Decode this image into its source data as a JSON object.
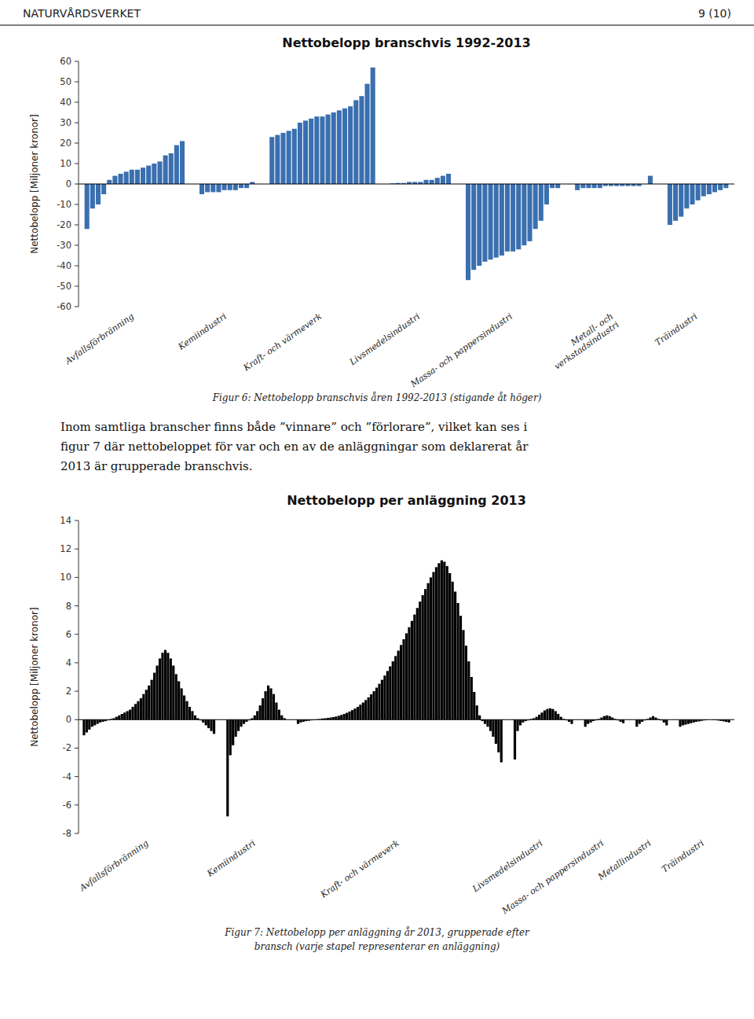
{
  "header_left": "NATURVÅRDSVERKET",
  "header_right": "9 (10)",
  "body_text": [
    "Inom samtliga branscher finns både ”vinnare” och ”förlorare”, vilket kan ses i",
    "figur 7 där nettobeloppet för var och en av de anläggningar som deklarerat år",
    "2013 är grupperade branschvis."
  ],
  "chart_data": [
    {
      "type": "bar",
      "title": "Nettobelopp branschvis 1992-2013",
      "y_label": "Nettobelopp [Miljoner kronor]",
      "caption": [
        "Figur 6: Nettobelopp branschvis åren 1992-2013 (stigande åt höger)"
      ],
      "color": "#3A6FB0",
      "ylim": [
        -60,
        60
      ],
      "yticks": [
        -60,
        -50,
        -40,
        -30,
        -20,
        -10,
        0,
        10,
        20,
        30,
        40,
        50,
        60
      ],
      "grid": false,
      "series": [
        {
          "name": "Avfallsförbränning",
          "values": [
            -22,
            -12,
            -10,
            -5,
            2,
            4,
            5,
            6,
            7,
            7,
            8,
            9,
            10,
            11,
            14,
            15,
            19,
            21
          ]
        },
        {
          "name": "Kemiindustri",
          "values": [
            -5,
            -4,
            -4,
            -4,
            -3,
            -3,
            -3,
            -2,
            -2,
            1
          ]
        },
        {
          "name": "Kraft- och värmeverk",
          "values": [
            23,
            24,
            25,
            26,
            27,
            30,
            31,
            32,
            33,
            33,
            34,
            35,
            36,
            37,
            38,
            41,
            43,
            49,
            57
          ]
        },
        {
          "name": "Livsmedelsindustri",
          "values": [
            0.3,
            0.5,
            0.5,
            1,
            1,
            1,
            2,
            2,
            3,
            4,
            5
          ]
        },
        {
          "name": "Massa- och pappersindustri",
          "values": [
            -47,
            -42,
            -40,
            -38,
            -37,
            -36,
            -35,
            -33,
            -33,
            -32,
            -30,
            -28,
            -22,
            -18,
            -10,
            -2,
            -2
          ]
        },
        {
          "name": "Metall- och\nverkstadsindustri",
          "values": [
            -3,
            -2,
            -2,
            -2,
            -2,
            -1,
            -1,
            -1,
            -1,
            -1,
            -1,
            -1,
            0,
            4
          ]
        },
        {
          "name": "Träindustri",
          "values": [
            -20,
            -18,
            -16,
            -12,
            -10,
            -8,
            -6,
            -5,
            -4,
            -3,
            -2
          ]
        }
      ]
    },
    {
      "type": "bar",
      "title": "Nettobelopp per anläggning 2013",
      "y_label": "Nettobelopp [Miljoner kronor]",
      "caption": [
        "Figur 7: Nettobelopp per anläggning år 2013, grupperade efter",
        "bransch (varje stapel representerar en anläggning)"
      ],
      "color": "#000000",
      "ylim": [
        -8,
        14
      ],
      "yticks": [
        -8,
        -6,
        -4,
        -2,
        0,
        2,
        4,
        6,
        8,
        10,
        12,
        14
      ],
      "grid": false,
      "series": [
        {
          "name": "Avfallsförbränning",
          "values": [
            -1.1,
            -0.9,
            -0.7,
            -0.5,
            -0.4,
            -0.3,
            -0.2,
            -0.15,
            -0.1,
            -0.05,
            0.05,
            0.1,
            0.2,
            0.3,
            0.4,
            0.5,
            0.6,
            0.7,
            0.9,
            1.1,
            1.3,
            1.5,
            1.8,
            2.1,
            2.4,
            2.8,
            3.3,
            3.8,
            4.3,
            4.7,
            4.9,
            4.7,
            4.3,
            3.8,
            3.2,
            2.7,
            2.2,
            1.7,
            1.3,
            0.9,
            0.6,
            0.3,
            0.1,
            -0.05,
            -0.2,
            -0.4,
            -0.6,
            -0.8,
            -1.0
          ]
        },
        {
          "name": "Kemiindustri",
          "values": [
            -6.8,
            -2.5,
            -1.8,
            -1.2,
            -0.8,
            -0.5,
            -0.3,
            -0.15,
            -0.05,
            0.1,
            0.3,
            0.6,
            1.0,
            1.5,
            2.0,
            2.4,
            2.2,
            1.8,
            1.2,
            0.7,
            0.3,
            0.1
          ]
        },
        {
          "name": "Kraft- och värmeverk",
          "values": [
            -0.3,
            -0.2,
            -0.15,
            -0.1,
            -0.08,
            -0.05,
            -0.03,
            0.03,
            0.05,
            0.08,
            0.1,
            0.12,
            0.15,
            0.18,
            0.22,
            0.27,
            0.33,
            0.4,
            0.48,
            0.57,
            0.67,
            0.78,
            0.9,
            1.05,
            1.2,
            1.38,
            1.57,
            1.78,
            2.0,
            2.25,
            2.52,
            2.8,
            3.1,
            3.42,
            3.75,
            4.1,
            4.47,
            4.85,
            5.25,
            5.65,
            6.07,
            6.5,
            6.94,
            7.39,
            7.85,
            8.3,
            8.75,
            9.18,
            9.6,
            10.0,
            10.38,
            10.72,
            11.0,
            11.2,
            11.1,
            10.8,
            10.3,
            9.7,
            9.0,
            8.2,
            7.3,
            6.3,
            5.2,
            4.1,
            3.0,
            1.95,
            1.0,
            0.3,
            -0.1,
            -0.3,
            -0.5,
            -0.8,
            -1.2,
            -1.7,
            -2.3,
            -3.0
          ]
        },
        {
          "name": "Livsmedelsindustri",
          "values": [
            -2.8,
            -0.8,
            -0.4,
            -0.2,
            -0.1,
            -0.05,
            0.05,
            0.1,
            0.2,
            0.35,
            0.5,
            0.65,
            0.75,
            0.8,
            0.75,
            0.6,
            0.4,
            0.2,
            0.05,
            -0.05,
            -0.15,
            -0.3
          ]
        },
        {
          "name": "Massa- och pappersindustri",
          "values": [
            -0.5,
            -0.3,
            -0.2,
            -0.1,
            -0.05,
            0.05,
            0.15,
            0.25,
            0.3,
            0.25,
            0.15,
            0.05,
            -0.05,
            -0.15,
            -0.25
          ]
        },
        {
          "name": "Metallindustri",
          "values": [
            -0.5,
            -0.3,
            -0.15,
            -0.05,
            0.05,
            0.15,
            0.25,
            0.15,
            0.05,
            -0.05,
            -0.2,
            -0.4
          ]
        },
        {
          "name": "Träindustri",
          "values": [
            -0.5,
            -0.4,
            -0.35,
            -0.3,
            -0.25,
            -0.2,
            -0.15,
            -0.12,
            -0.08,
            -0.05,
            -0.02,
            0.0,
            -0.02,
            -0.04,
            -0.06,
            -0.09,
            -0.12,
            -0.16,
            -0.2
          ]
        }
      ]
    }
  ]
}
